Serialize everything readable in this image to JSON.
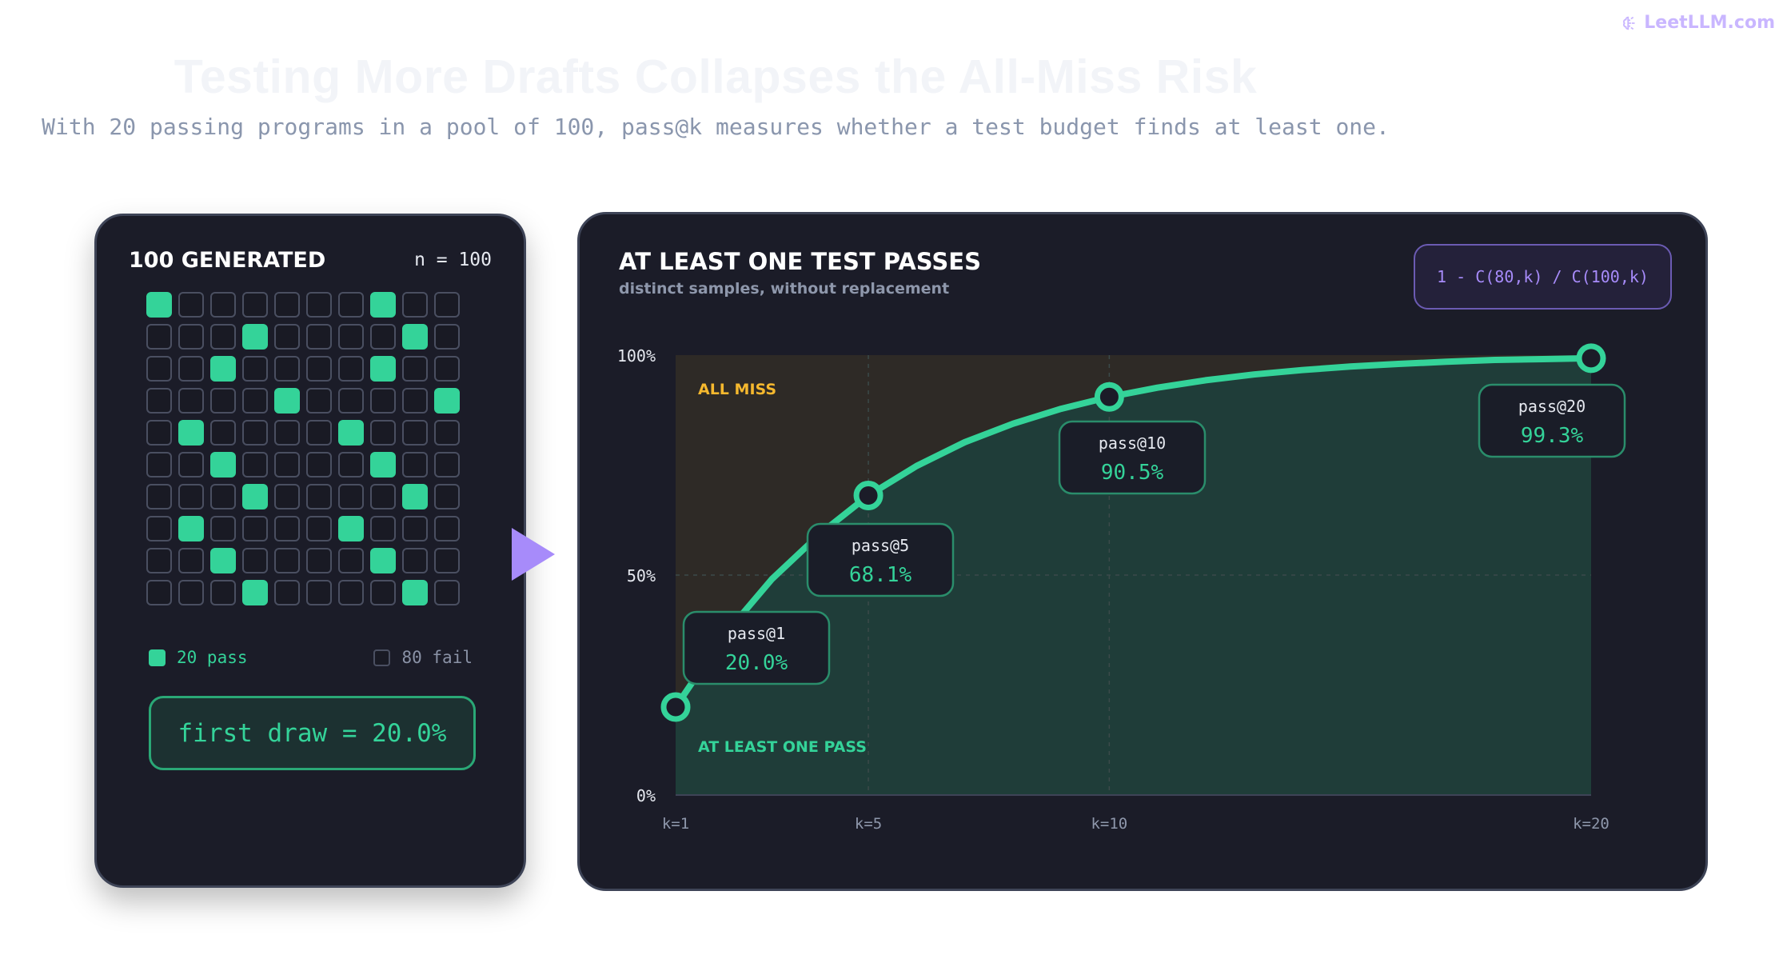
{
  "brand": {
    "name": "LeetLLM.com",
    "icon": "brain-icon"
  },
  "header": {
    "title": "Testing More Drafts Collapses the All-Miss Risk",
    "subtitle": "With 20 passing programs in a pool of 100, pass@k measures whether a test budget finds at least one."
  },
  "left_panel": {
    "title": "100 GENERATED",
    "n_label": "n = 100",
    "grid_pass_columns": [
      0,
      7,
      3,
      8,
      2,
      7,
      4,
      9,
      1,
      6,
      2,
      7,
      3,
      8,
      1,
      6,
      2,
      7,
      3,
      8
    ],
    "legend_pass": "20 pass",
    "legend_fail": "80 fail",
    "first_draw": "first draw = 20.0%"
  },
  "right_panel": {
    "title": "AT LEAST ONE TEST PASSES",
    "subtitle": "distinct samples, without replacement",
    "formula": "1 - C(80,k) / C(100,k)"
  },
  "colors": {
    "accent_green": "#34d399",
    "accent_amber": "#f5b82e",
    "accent_purple": "#a78bfa",
    "panel_bg": "#1b1c28"
  },
  "chart_data": {
    "type": "area",
    "title": "AT LEAST ONE TEST PASSES",
    "subtitle": "distinct samples, without replacement",
    "x": [
      1,
      2,
      3,
      4,
      5,
      6,
      7,
      8,
      9,
      10,
      11,
      12,
      13,
      14,
      15,
      16,
      17,
      18,
      19,
      20
    ],
    "series": [
      {
        "values": [
          20.0,
          36.2,
          49.1,
          59.4,
          68.1,
          74.8,
          80.2,
          84.4,
          87.8,
          90.5,
          92.6,
          94.3,
          95.6,
          96.6,
          97.4,
          98.0,
          98.5,
          98.9,
          99.1,
          99.3
        ]
      }
    ],
    "ylim": [
      0,
      100
    ],
    "xlim": [
      1,
      20
    ],
    "y_ticks": [
      "0%",
      "50%",
      "100%"
    ],
    "y_tick_values": [
      0,
      50,
      100
    ],
    "x_ticks": [
      "k=1",
      "k=5",
      "k=10",
      "k=20"
    ],
    "x_tick_values": [
      1,
      5,
      10,
      20
    ],
    "region_labels": {
      "above": "ALL MISS",
      "below": "AT LEAST ONE PASS"
    },
    "annotations": [
      {
        "k": 1,
        "label": "pass@1",
        "value": "20.0%"
      },
      {
        "k": 5,
        "label": "pass@5",
        "value": "68.1%"
      },
      {
        "k": 10,
        "label": "pass@10",
        "value": "90.5%"
      },
      {
        "k": 20,
        "label": "pass@20",
        "value": "99.3%"
      }
    ],
    "grid": true
  }
}
